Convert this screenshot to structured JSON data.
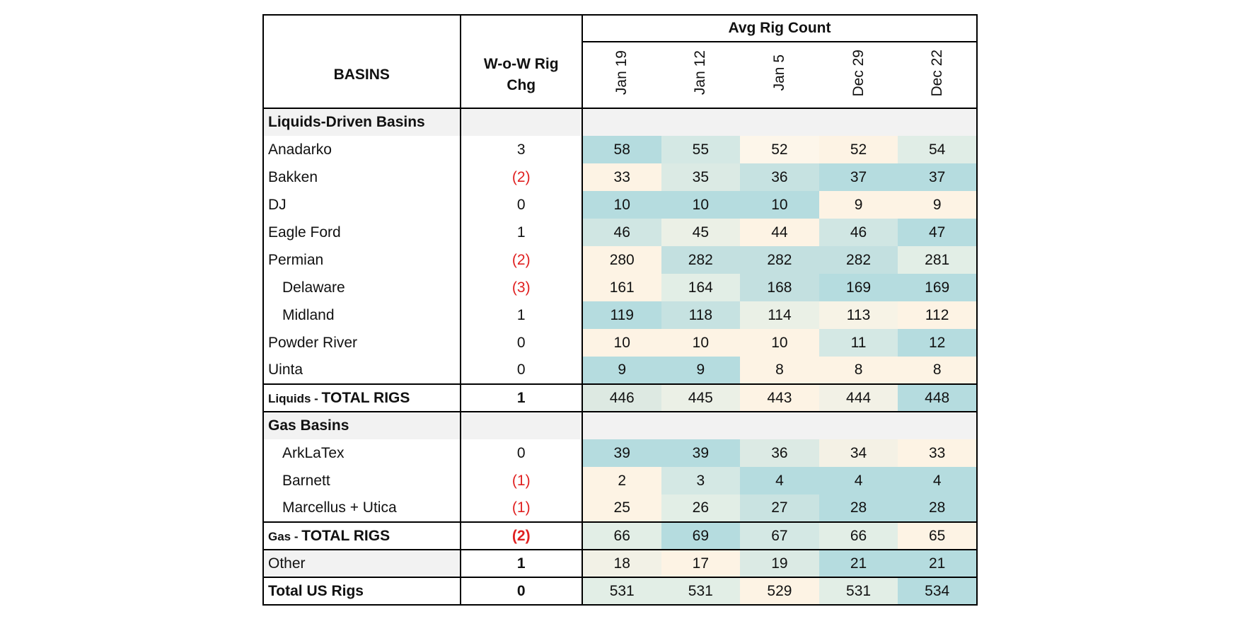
{
  "header": {
    "basins_label": "BASINS",
    "wow_label_line1": "W-o-W Rig",
    "wow_label_line2": "Chg",
    "avg_rig_count_label": "Avg Rig Count",
    "periods": [
      "Jan 19",
      "Jan 12",
      "Jan 5",
      "Dec 29",
      "Dec 22"
    ]
  },
  "sections": {
    "liquids_title": "Liquids-Driven Basins",
    "gas_title": "Gas Basins"
  },
  "liquids_rows": [
    {
      "name": "Anadarko",
      "wow": "3",
      "values": [
        "58",
        "55",
        "52",
        "52",
        "54"
      ],
      "shades": [
        "#b5dcdf",
        "#d4e8e4",
        "#fdf6ea",
        "#fdf3e4",
        "#e0ede6"
      ]
    },
    {
      "name": "Bakken",
      "wow": "(2)",
      "values": [
        "33",
        "35",
        "36",
        "37",
        "37"
      ],
      "shades": [
        "#fdf3e4",
        "#dbeae4",
        "#c6e2e1",
        "#b5dcdf",
        "#b5dcdf"
      ]
    },
    {
      "name": "DJ",
      "wow": "0",
      "values": [
        "10",
        "10",
        "10",
        "9",
        "9"
      ],
      "shades": [
        "#b5dcdf",
        "#b5dcdf",
        "#b5dcdf",
        "#fdf3e4",
        "#fdf3e4"
      ]
    },
    {
      "name": "Eagle Ford",
      "wow": "1",
      "values": [
        "46",
        "45",
        "44",
        "46",
        "47"
      ],
      "shades": [
        "#d0e6e3",
        "#ebf0e6",
        "#fdf3e4",
        "#d0e6e3",
        "#b5dcdf"
      ]
    },
    {
      "name": "Permian",
      "wow": "(2)",
      "values": [
        "280",
        "282",
        "282",
        "282",
        "281"
      ],
      "shades": [
        "#fdf3e4",
        "#c3e0e0",
        "#c3e0e0",
        "#c3e0e0",
        "#e2eee6"
      ]
    },
    {
      "name": "Delaware",
      "wow": "(3)",
      "values": [
        "161",
        "164",
        "168",
        "169",
        "169"
      ],
      "shades": [
        "#fdf3e4",
        "#e2eee6",
        "#c3e0e0",
        "#b5dcdf",
        "#b5dcdf"
      ]
    },
    {
      "name": "Midland",
      "wow": "1",
      "values": [
        "119",
        "118",
        "114",
        "113",
        "112"
      ],
      "shades": [
        "#b5dcdf",
        "#c6e2e1",
        "#eaf0e6",
        "#f7f3e6",
        "#fdf3e4"
      ]
    },
    {
      "name": "Powder River",
      "wow": "0",
      "values": [
        "10",
        "10",
        "10",
        "11",
        "12"
      ],
      "shades": [
        "#fdf3e4",
        "#fdf3e4",
        "#fdf3e4",
        "#d4e8e4",
        "#b5dcdf"
      ]
    },
    {
      "name": "Uinta",
      "wow": "0",
      "values": [
        "9",
        "9",
        "8",
        "8",
        "8"
      ],
      "shades": [
        "#b5dcdf",
        "#b5dcdf",
        "#fdf3e4",
        "#fdf3e4",
        "#fdf3e4"
      ]
    }
  ],
  "liquids_total": {
    "prefix": "Liquids - ",
    "label": "TOTAL RIGS",
    "wow": "1",
    "values": [
      "446",
      "445",
      "443",
      "444",
      "448"
    ],
    "shades": [
      "#dde9e2",
      "#ebf0e6",
      "#fdf3e4",
      "#f2f1e6",
      "#b5dcdf"
    ]
  },
  "gas_rows": [
    {
      "name": "ArkLaTex",
      "wow": "0",
      "values": [
        "39",
        "39",
        "36",
        "34",
        "33"
      ],
      "shades": [
        "#b5dcdf",
        "#b5dcdf",
        "#dceae4",
        "#f4f1e5",
        "#fdf3e4"
      ]
    },
    {
      "name": "Barnett",
      "wow": "(1)",
      "values": [
        "2",
        "3",
        "4",
        "4",
        "4"
      ],
      "shades": [
        "#fdf3e4",
        "#d4e8e4",
        "#b5dcdf",
        "#b5dcdf",
        "#b5dcdf"
      ]
    },
    {
      "name": "Marcellus + Utica",
      "wow": "(1)",
      "values": [
        "25",
        "26",
        "27",
        "28",
        "28"
      ],
      "shades": [
        "#fdf3e4",
        "#e2eee6",
        "#c9e3e1",
        "#b5dcdf",
        "#b5dcdf"
      ]
    }
  ],
  "gas_total": {
    "prefix": "Gas - ",
    "label": "TOTAL RIGS",
    "wow": "(2)",
    "values": [
      "66",
      "69",
      "67",
      "66",
      "65"
    ],
    "shades": [
      "#e2eee6",
      "#b5dcdf",
      "#d4e8e4",
      "#e2eee6",
      "#fdf3e4"
    ]
  },
  "other_row": {
    "name": "Other",
    "wow": "1",
    "values": [
      "18",
      "17",
      "19",
      "21",
      "21"
    ],
    "shades": [
      "#f2f1e6",
      "#fdf3e4",
      "#dbeae4",
      "#b5dcdf",
      "#b5dcdf"
    ]
  },
  "total_row": {
    "name": "Total US Rigs",
    "wow": "0",
    "values": [
      "531",
      "531",
      "529",
      "531",
      "534"
    ],
    "shades": [
      "#e2eee6",
      "#e2eee6",
      "#fdf3e4",
      "#e2eee6",
      "#b5dcdf"
    ]
  },
  "colors": {
    "negative": "#e02020",
    "section_gray": "#f2f2f2",
    "low": "#fdf3e4",
    "high": "#b5dcdf"
  }
}
